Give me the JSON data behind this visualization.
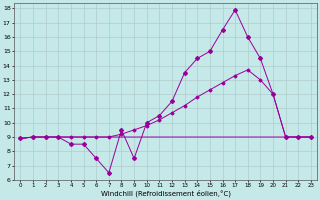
{
  "xlabel": "Windchill (Refroidissement éolien,°C)",
  "background_color": "#c5e8e8",
  "line_color": "#990099",
  "grid_color": "#b0cccc",
  "xlim": [
    -0.5,
    23.5
  ],
  "ylim": [
    6,
    18.4
  ],
  "xticks": [
    0,
    1,
    2,
    3,
    4,
    5,
    6,
    7,
    8,
    9,
    10,
    11,
    12,
    13,
    14,
    15,
    16,
    17,
    18,
    19,
    20,
    21,
    22,
    23
  ],
  "yticks": [
    6,
    7,
    8,
    9,
    10,
    11,
    12,
    13,
    14,
    15,
    16,
    17,
    18
  ],
  "series1_x": [
    0,
    1,
    2,
    3,
    4,
    5,
    6,
    7,
    8,
    9,
    10,
    11,
    12,
    13,
    14,
    15,
    16,
    17,
    18,
    19,
    20,
    21,
    22,
    23
  ],
  "series1_y": [
    8.9,
    9.0,
    9.0,
    9.0,
    8.5,
    8.5,
    7.5,
    6.5,
    9.5,
    7.5,
    10.0,
    10.5,
    11.5,
    13.5,
    14.5,
    15.0,
    16.5,
    17.9,
    16.0,
    14.5,
    12.0,
    9.0,
    9.0,
    9.0
  ],
  "series2_x": [
    0,
    1,
    2,
    3,
    4,
    5,
    6,
    7,
    8,
    9,
    10,
    11,
    12,
    13,
    14,
    15,
    16,
    17,
    18,
    19,
    20,
    21,
    22,
    23
  ],
  "series2_y": [
    8.9,
    9.0,
    9.0,
    9.0,
    9.0,
    9.0,
    9.0,
    9.0,
    9.0,
    9.0,
    9.0,
    9.0,
    9.0,
    9.0,
    9.0,
    9.0,
    9.0,
    9.0,
    9.0,
    9.0,
    9.0,
    9.0,
    9.0,
    9.0
  ],
  "series3_x": [
    0,
    1,
    2,
    3,
    4,
    5,
    6,
    7,
    8,
    9,
    10,
    11,
    12,
    13,
    14,
    15,
    16,
    17,
    18,
    19,
    20,
    21,
    22,
    23
  ],
  "series3_y": [
    8.9,
    9.0,
    9.0,
    9.0,
    9.0,
    9.0,
    9.0,
    9.0,
    9.2,
    9.5,
    9.8,
    10.2,
    10.7,
    11.2,
    11.8,
    12.3,
    12.8,
    13.3,
    13.7,
    13.0,
    12.0,
    9.0,
    9.0,
    9.0
  ]
}
